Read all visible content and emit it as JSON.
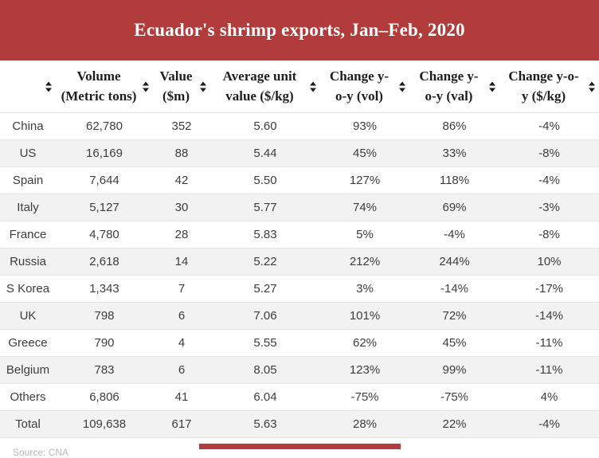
{
  "theme": {
    "accent": "#b23b3b",
    "title_text": "#ffffff",
    "header_text": "#1e1e1e",
    "cell_text": "#3d3d3d",
    "row_alt_background": "#f2f2f2",
    "row_border": "#e6e6e6",
    "source_text": "#b9b9b9"
  },
  "chart_data": {
    "type": "table",
    "title": "Ecuador's shrimp exports, Jan–Feb, 2020",
    "sort_icon": "sort-arrows",
    "legend_position": "none",
    "columns": [
      {
        "label": ""
      },
      {
        "label": "Volume\n(Metric tons)"
      },
      {
        "label": "Value\n($m)"
      },
      {
        "label": "Average unit\nvalue ($/kg)"
      },
      {
        "label": "Change y-\no-y (vol)"
      },
      {
        "label": "Change y-\no-y (val)"
      },
      {
        "label": "Change y-o-\ny ($/kg)"
      }
    ],
    "rows": [
      [
        "China",
        "62,780",
        "352",
        "5.60",
        "93%",
        "86%",
        "-4%"
      ],
      [
        "US",
        "16,169",
        "88",
        "5.44",
        "45%",
        "33%",
        "-8%"
      ],
      [
        "Spain",
        "7,644",
        "42",
        "5.50",
        "127%",
        "118%",
        "-4%"
      ],
      [
        "Italy",
        "5,127",
        "30",
        "5.77",
        "74%",
        "69%",
        "-3%"
      ],
      [
        "France",
        "4,780",
        "28",
        "5.83",
        "5%",
        "-4%",
        "-8%"
      ],
      [
        "Russia",
        "2,618",
        "14",
        "5.22",
        "212%",
        "244%",
        "10%"
      ],
      [
        "S Korea",
        "1,343",
        "7",
        "5.27",
        "3%",
        "-14%",
        "-17%"
      ],
      [
        "UK",
        "798",
        "6",
        "7.06",
        "101%",
        "72%",
        "-14%"
      ],
      [
        "Greece",
        "790",
        "4",
        "5.55",
        "62%",
        "45%",
        "-11%"
      ],
      [
        "Belgium",
        "783",
        "6",
        "8.05",
        "123%",
        "99%",
        "-11%"
      ],
      [
        "Others",
        "6,806",
        "41",
        "6.04",
        "-75%",
        "-75%",
        "4%"
      ],
      [
        "Total",
        "109,638",
        "617",
        "5.63",
        "28%",
        "22%",
        "-4%"
      ]
    ],
    "source": "Source: CNA"
  }
}
